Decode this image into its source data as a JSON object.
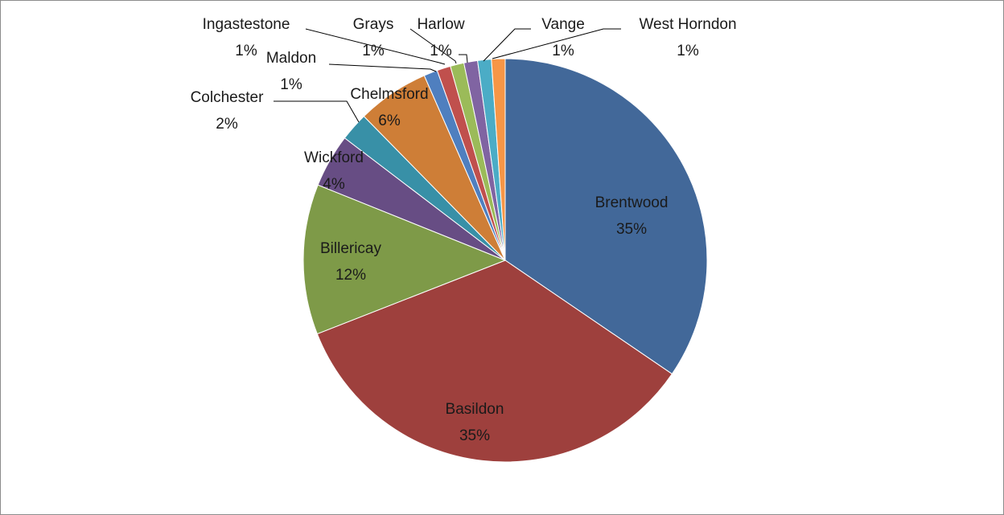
{
  "chart_data": {
    "type": "pie",
    "title": "",
    "start_angle_deg": 0,
    "direction": "clockwise",
    "slices": [
      {
        "label": "Brentwood",
        "percent_label": "35%",
        "value": 34.7,
        "color": "#426899"
      },
      {
        "label": "Basildon",
        "percent_label": "35%",
        "value": 34.7,
        "color": "#9e403d"
      },
      {
        "label": "Billericay",
        "percent_label": "12%",
        "value": 12.1,
        "color": "#7e9a48"
      },
      {
        "label": "Wickford",
        "percent_label": "4%",
        "value": 4.3,
        "color": "#674d84"
      },
      {
        "label": "Colchester",
        "percent_label": "2%",
        "value": 2.3,
        "color": "#3890a7"
      },
      {
        "label": "Chelmsford",
        "percent_label": "6%",
        "value": 5.8,
        "color": "#ce7e37"
      },
      {
        "label": "Maldon",
        "percent_label": "1%",
        "value": 1.1,
        "color": "#4f7fbf"
      },
      {
        "label": "Ingastestone",
        "percent_label": "1%",
        "value": 1.1,
        "color": "#c0504d"
      },
      {
        "label": "Grays",
        "percent_label": "1%",
        "value": 1.1,
        "color": "#9bbb59"
      },
      {
        "label": "Harlow",
        "percent_label": "1%",
        "value": 1.1,
        "color": "#8064a2"
      },
      {
        "label": "Vange",
        "percent_label": "1%",
        "value": 1.1,
        "color": "#4bacc6"
      },
      {
        "label": "West Horndon",
        "percent_label": "1%",
        "value": 1.1,
        "color": "#f79646"
      }
    ]
  }
}
